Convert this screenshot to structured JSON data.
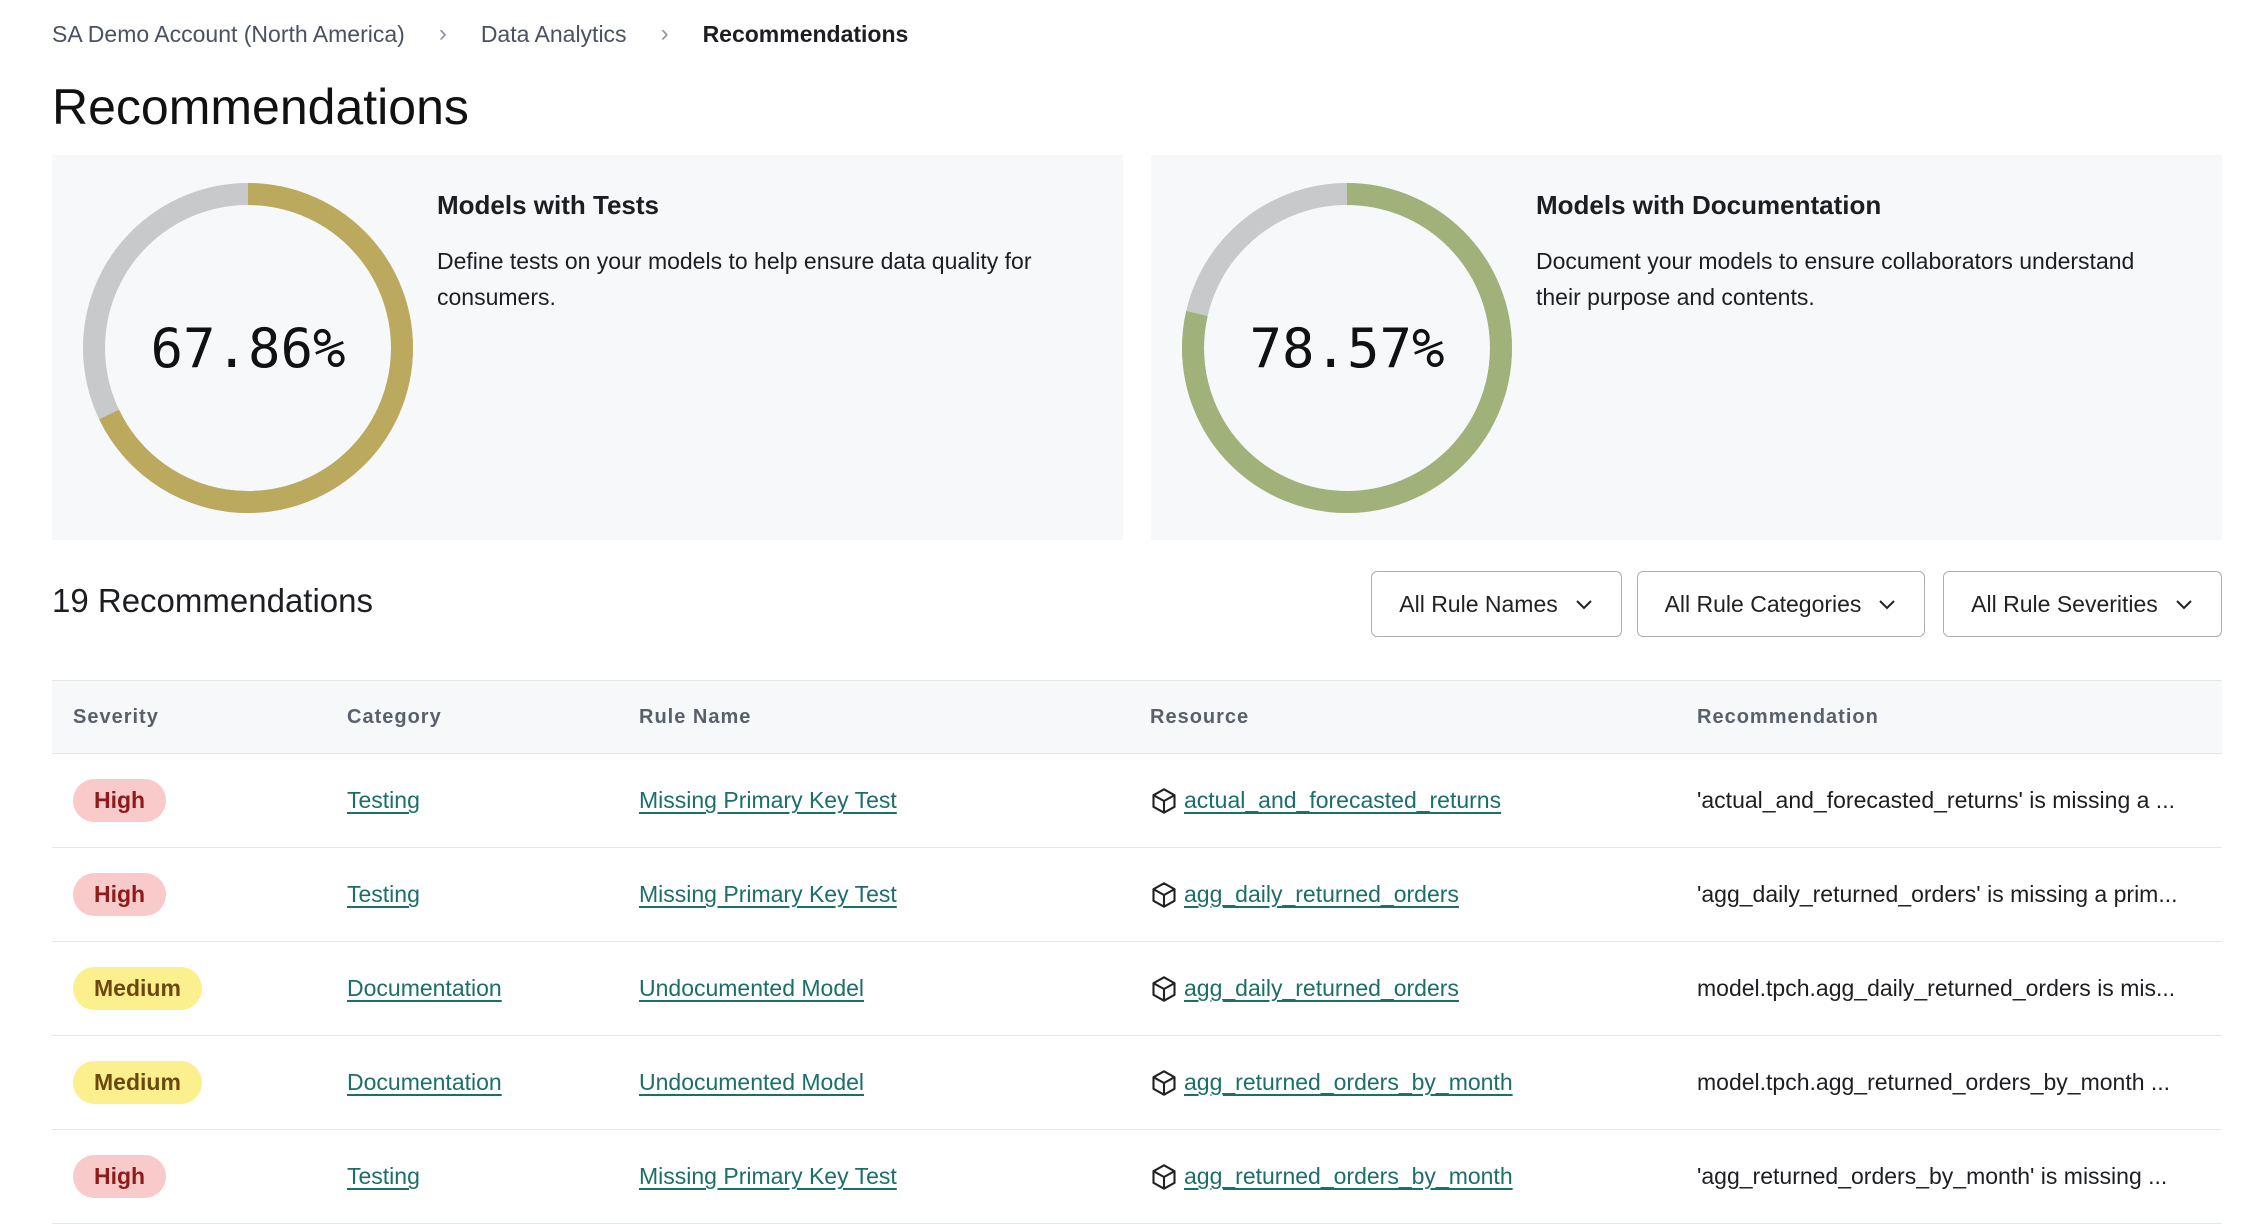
{
  "breadcrumb": [
    "SA Demo Account (North America)",
    "Data Analytics",
    "Recommendations"
  ],
  "page_title": "Recommendations",
  "cards": [
    {
      "title": "Models with Tests",
      "description": "Define tests on your models to help ensure data quality for consumers.",
      "percent_label": "67.86%",
      "percent": 67.86,
      "color": "#bba95e"
    },
    {
      "title": "Models with Documentation",
      "description": "Document your models to ensure collaborators understand their purpose and contents.",
      "percent_label": "78.57%",
      "percent": 78.57,
      "color": "#a0b27a"
    }
  ],
  "track_color": "#c8c9cb",
  "count_label": "19 Recommendations",
  "filters": [
    "All Rule Names",
    "All Rule Categories",
    "All Rule Severities"
  ],
  "table": {
    "headers": [
      "Severity",
      "Category",
      "Rule Name",
      "Resource",
      "Recommendation"
    ],
    "rows": [
      {
        "severity": "High",
        "category": "Testing",
        "rule": "Missing Primary Key Test",
        "resource": "actual_and_forecasted_returns",
        "recommendation": "'actual_and_forecasted_returns' is missing a ..."
      },
      {
        "severity": "High",
        "category": "Testing",
        "rule": "Missing Primary Key Test",
        "resource": "agg_daily_returned_orders",
        "recommendation": "'agg_daily_returned_orders' is missing a prim..."
      },
      {
        "severity": "Medium",
        "category": "Documentation",
        "rule": "Undocumented Model",
        "resource": "agg_daily_returned_orders",
        "recommendation": "model.tpch.agg_daily_returned_orders is mis..."
      },
      {
        "severity": "Medium",
        "category": "Documentation",
        "rule": "Undocumented Model",
        "resource": "agg_returned_orders_by_month",
        "recommendation": "model.tpch.agg_returned_orders_by_month ..."
      },
      {
        "severity": "High",
        "category": "Testing",
        "rule": "Missing Primary Key Test",
        "resource": "agg_returned_orders_by_month",
        "recommendation": "'agg_returned_orders_by_month' is missing ..."
      }
    ]
  }
}
